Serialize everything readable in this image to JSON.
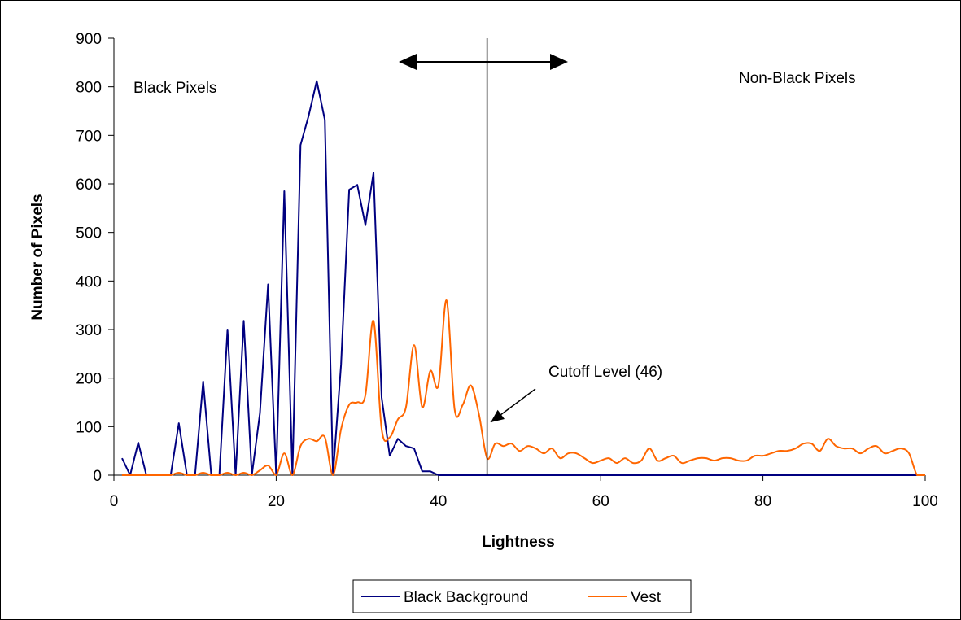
{
  "chart_data": {
    "type": "line",
    "xlabel": "Lightness",
    "ylabel": "Number of Pixels",
    "xlim": [
      0,
      100
    ],
    "ylim": [
      0,
      900
    ],
    "xticks": [
      0,
      20,
      40,
      60,
      80,
      100
    ],
    "yticks": [
      0,
      100,
      200,
      300,
      400,
      500,
      600,
      700,
      800,
      900
    ],
    "grid": false,
    "legend_position": "bottom",
    "annotations": {
      "left_region": "Black Pixels",
      "right_region": "Non-Black Pixels",
      "cutoff": "Cutoff Level (46)",
      "cutoff_x": 46
    },
    "series": [
      {
        "name": "Black Background",
        "color": "#000080",
        "smooth": false,
        "x": [
          1,
          2,
          3,
          4,
          5,
          6,
          7,
          8,
          9,
          10,
          11,
          12,
          13,
          14,
          15,
          16,
          17,
          18,
          19,
          20,
          21,
          22,
          23,
          24,
          25,
          26,
          27,
          28,
          29,
          30,
          31,
          32,
          33,
          34,
          35,
          36,
          37,
          38,
          39,
          40,
          41,
          42,
          43,
          44,
          45,
          46,
          47,
          48,
          49,
          50,
          51,
          52,
          53,
          54,
          55,
          56,
          57,
          58,
          59,
          60,
          61,
          62,
          63,
          64,
          65,
          66,
          67,
          68,
          69,
          70,
          71,
          72,
          73,
          74,
          75,
          76,
          77,
          78,
          79,
          80,
          81,
          82,
          83,
          84,
          85,
          86,
          87,
          88,
          89,
          90,
          91,
          92,
          93,
          94,
          95,
          96,
          97,
          98,
          99,
          100
        ],
        "values": [
          35,
          0,
          67,
          0,
          0,
          0,
          0,
          107,
          0,
          0,
          193,
          0,
          0,
          300,
          0,
          318,
          0,
          128,
          393,
          0,
          585,
          0,
          680,
          740,
          812,
          732,
          0,
          228,
          588,
          598,
          515,
          623,
          160,
          40,
          75,
          60,
          55,
          8,
          8,
          0,
          0,
          0,
          0,
          0,
          0,
          0,
          0,
          0,
          0,
          0,
          0,
          0,
          0,
          0,
          0,
          0,
          0,
          0,
          0,
          0,
          0,
          0,
          0,
          0,
          0,
          0,
          0,
          0,
          0,
          0,
          0,
          0,
          0,
          0,
          0,
          0,
          0,
          0,
          0,
          0,
          0,
          0,
          0,
          0,
          0,
          0,
          0,
          0,
          0,
          0,
          0,
          0,
          0,
          0,
          0,
          0,
          0,
          0,
          0,
          0
        ]
      },
      {
        "name": "Vest",
        "color": "#FF6600",
        "smooth": true,
        "x": [
          1,
          2,
          3,
          4,
          5,
          6,
          7,
          8,
          9,
          10,
          11,
          12,
          13,
          14,
          15,
          16,
          17,
          18,
          19,
          20,
          21,
          22,
          23,
          24,
          25,
          26,
          27,
          28,
          29,
          30,
          31,
          32,
          33,
          34,
          35,
          36,
          37,
          38,
          39,
          40,
          41,
          42,
          43,
          44,
          45,
          46,
          47,
          48,
          49,
          50,
          51,
          52,
          53,
          54,
          55,
          56,
          57,
          58,
          59,
          60,
          61,
          62,
          63,
          64,
          65,
          66,
          67,
          68,
          69,
          70,
          71,
          72,
          73,
          74,
          75,
          76,
          77,
          78,
          79,
          80,
          81,
          82,
          83,
          84,
          85,
          86,
          87,
          88,
          89,
          90,
          91,
          92,
          93,
          94,
          95,
          96,
          97,
          98,
          99,
          100
        ],
        "values": [
          0,
          0,
          0,
          0,
          0,
          0,
          0,
          5,
          0,
          0,
          5,
          0,
          0,
          5,
          0,
          5,
          0,
          10,
          20,
          0,
          45,
          0,
          60,
          75,
          70,
          78,
          0,
          95,
          145,
          150,
          165,
          318,
          95,
          78,
          115,
          140,
          268,
          140,
          215,
          185,
          360,
          135,
          145,
          185,
          125,
          35,
          65,
          60,
          65,
          50,
          60,
          55,
          45,
          55,
          35,
          45,
          45,
          35,
          25,
          30,
          35,
          25,
          35,
          25,
          30,
          55,
          30,
          35,
          40,
          25,
          30,
          35,
          35,
          30,
          35,
          35,
          30,
          30,
          40,
          40,
          45,
          50,
          50,
          55,
          65,
          65,
          50,
          75,
          60,
          55,
          55,
          45,
          55,
          60,
          45,
          50,
          55,
          45,
          0,
          0
        ]
      }
    ]
  }
}
